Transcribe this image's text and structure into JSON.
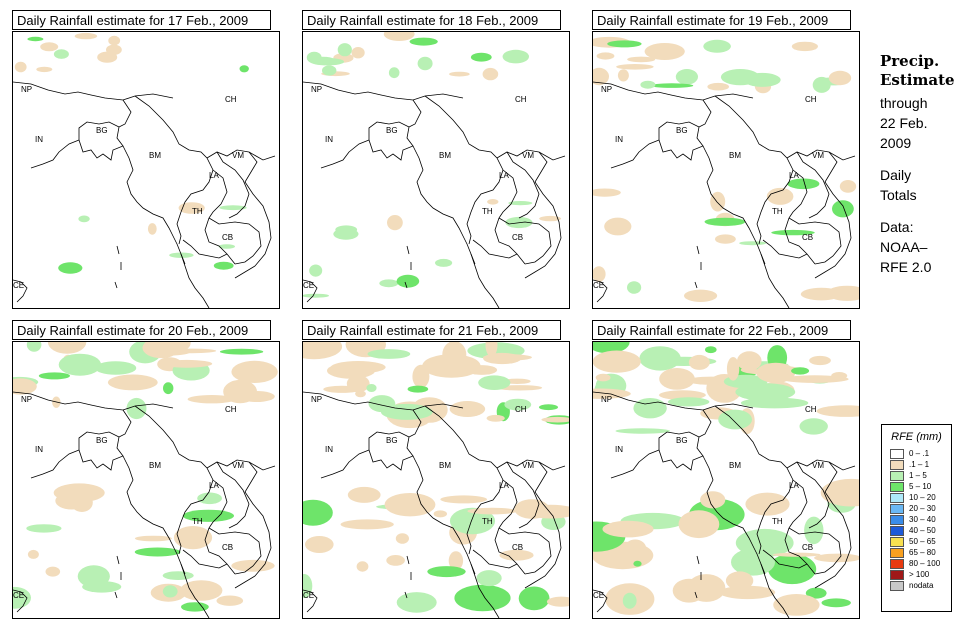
{
  "panels": [
    {
      "title": "Daily Rainfall estimate for  17 Feb., 2009"
    },
    {
      "title": "Daily Rainfall estimate for  18 Feb., 2009"
    },
    {
      "title": "Daily Rainfall estimate for  19 Feb., 2009"
    },
    {
      "title": "Daily Rainfall estimate for  20 Feb., 2009"
    },
    {
      "title": "Daily Rainfall estimate for  21 Feb., 2009"
    },
    {
      "title": "Daily Rainfall estimate for  22 Feb., 2009"
    }
  ],
  "map_labels": {
    "np": "NP",
    "ch": "CH",
    "in": "IN",
    "bg": "BG",
    "bm": "BM",
    "vm": "VM",
    "la": "LA",
    "th": "TH",
    "cb": "CB",
    "ce": "CE"
  },
  "sidebar": {
    "heading1": "Precip.",
    "heading2": "Estimate",
    "line1": "through",
    "line2": "22 Feb.",
    "line3": "2009",
    "line4": "Daily",
    "line5": "Totals",
    "line6": "Data:",
    "line7": "NOAA–",
    "line8": "RFE 2.0"
  },
  "legend": {
    "title": "RFE (mm)",
    "items": [
      {
        "label": "0 – .1",
        "color": "#ffffff"
      },
      {
        "label": ".1 – 1",
        "color": "#f2dcbc"
      },
      {
        "label": "1 – 5",
        "color": "#b8f0b4"
      },
      {
        "label": "5 – 10",
        "color": "#6ee46a"
      },
      {
        "label": "10 – 20",
        "color": "#aee8f8"
      },
      {
        "label": "20 – 30",
        "color": "#6ab8f4"
      },
      {
        "label": "30 – 40",
        "color": "#3a8ce8"
      },
      {
        "label": "40 – 50",
        "color": "#1e5ad8"
      },
      {
        "label": "50 – 65",
        "color": "#f8e050"
      },
      {
        "label": "65 – 80",
        "color": "#f8a020"
      },
      {
        "label": "80 – 100",
        "color": "#e83a10"
      },
      {
        "label": "> 100",
        "color": "#a01818"
      },
      {
        "label": "nodata",
        "color": "#c8c8c8"
      }
    ]
  }
}
